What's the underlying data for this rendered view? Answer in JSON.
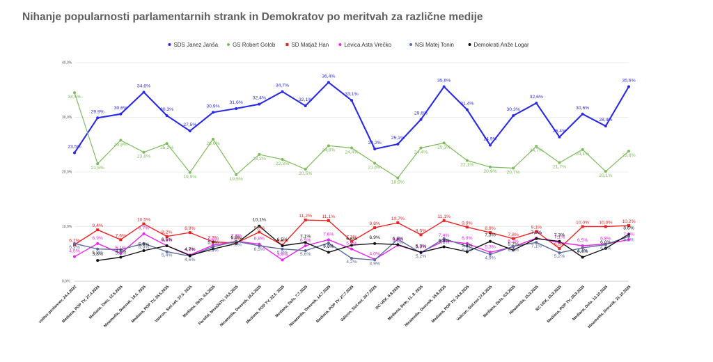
{
  "title": "Nihanje popularnosti parlamentarnih strank in Demokratov po meritvah za različne medije",
  "chart_data": {
    "type": "line",
    "title": "Nihanje popularnosti parlamentarnih strank in Demokratov po meritvah za različne medije",
    "xlabel": "",
    "ylabel": "",
    "ylim": [
      0,
      40
    ],
    "yticks": [
      "0,0%",
      "10,0%",
      "20,0%",
      "30,0%",
      "40,0%"
    ],
    "grid": true,
    "legend_position": "top",
    "categories": [
      "volitve poslancev, 24.4.2022",
      "Mediana, POP TV, 27.4.2025",
      "Mediana, Delo, 12.5.2025",
      "Ninamedia, Dnevnik, 19.5. 2025",
      "Mediana, POP TV, 25.5.2025",
      "Valicon, Siol.net, 27.5. 2025",
      "Mediana, Delo, 9.6.2025",
      "Parsifal, Nova24TV, 16.6.2025",
      "Ninamedia, Dnevnik, 16.6.2025",
      "Mediana, POP TV, 22.6. 2025",
      "Mediana, Delo, 7.7.2025",
      "Ninamedia, Dnevnik, 14.7.2025",
      "Mediana, POP TV, 27.7.2025",
      "Valicon, Siol.net, 30.7.2025",
      "RC UEK, 9.8.2025",
      "Mediana, Delo, 11. 8. 2025",
      "Ninamedia, Dnevnik, 18.8.2025",
      "Mediana, POP TV, 24.8.2025",
      "Valicon, Siol.net 27.8.2025",
      "Mediana, Delo, 9.9.2025",
      "Ninamedia, 15.9.2025",
      "RC UEK, 15.9.2025",
      "Mediana, POP TV, 28.9.2025",
      "Mediana, Delo, 13.10.2025",
      "Ninamedia, Dnevnik, 21.10.2025"
    ],
    "series": [
      {
        "name": "SDS Janez Janša",
        "color": "#2a2ae6",
        "values": [
          23.5,
          29.9,
          30.6,
          34.6,
          30.3,
          27.5,
          30.9,
          31.6,
          32.4,
          34.7,
          32.1,
          36.4,
          33.1,
          24.2,
          25.1,
          29.6,
          35.6,
          31.4,
          24.9,
          30.3,
          32.6,
          26.4,
          30.6,
          28.4,
          35.6
        ],
        "labels": [
          "23,5%",
          "29,9%",
          "30,6%",
          "34,6%",
          "30,3%",
          "27,5%",
          "30,9%",
          "31,6%",
          "32,4%",
          "34,7%",
          "32,1%",
          "36,4%",
          "33,1%",
          "24,2%",
          "25,1%",
          "29,6%",
          "35,6%",
          "31,4%",
          "24,9%",
          "30,3%",
          "32,6%",
          "26,4%",
          "30,6%",
          "28,4%",
          "35,6%"
        ]
      },
      {
        "name": "GS Robert Golob",
        "color": "#7dbb5a",
        "values": [
          34.5,
          21.5,
          25.8,
          23.6,
          25.2,
          19.9,
          26.0,
          19.5,
          23.2,
          22.3,
          20.5,
          24.8,
          24.4,
          21.6,
          18.9,
          24.4,
          25.3,
          22.1,
          20.9,
          20.7,
          24.7,
          21.7,
          24.1,
          20.1,
          23.8
        ],
        "labels": [
          "34,5%",
          "21,5%",
          "25,8%",
          "23,6%",
          "25,2%",
          "19,9%",
          "26,0%",
          "19,5%",
          "23,2%",
          "22,3%",
          "20,5%",
          "24,8%",
          "24,4%",
          "21,6%",
          "18,9%",
          "24,4%",
          "25,3%",
          "22,1%",
          "20,9%",
          "20,7%",
          "24,7%",
          "21,7%",
          "24,1%",
          "20,1%",
          "23,8%"
        ]
      },
      {
        "name": "SD Matjaž Han",
        "color": "#ee2222",
        "values": [
          6.7,
          9.4,
          7.6,
          10.5,
          8.2,
          8.9,
          7.2,
          7.0,
          9.0,
          6.6,
          11.2,
          11.1,
          7.3,
          9.8,
          10.7,
          8.5,
          11.1,
          9.9,
          8.9,
          7.8,
          9.1,
          6.0,
          10.0,
          10.0,
          10.2
        ],
        "labels": [
          "6,7%",
          "9,4%",
          "7,6%",
          "10,5%",
          "8,2%",
          "8,9%",
          "7,2%",
          "7,0%",
          "9,0%",
          "6,6%",
          "11,2%",
          "11,1%",
          "7,3%",
          "9,8%",
          "10,7%",
          "8,5%",
          "11,1%",
          "9,9%",
          "8,9%",
          "7,8%",
          "9,1%",
          "6,0%",
          "10,0%",
          "10,0%",
          "10,2%"
        ]
      },
      {
        "name": "Levica  Asta Vrečko",
        "color": "#ee22ee",
        "values": [
          4.5,
          6.9,
          5.1,
          8.7,
          6.5,
          4.8,
          6.6,
          7.3,
          6.8,
          3.9,
          6.5,
          7.6,
          5.9,
          4.0,
          6.6,
          5.3,
          7.4,
          6.9,
          5.3,
          6.3,
          7.9,
          7.1,
          6.5,
          6.8,
          7.6
        ],
        "labels": [
          "4,5%",
          "6,9%",
          "5,1%",
          "8,7%",
          "6,5%",
          "4,8%",
          "6,6%",
          "7,3%",
          "6,8%",
          "3,9%",
          "6,5%",
          "7,6%",
          "5,9%",
          "4,0%",
          "6,6%",
          "5,3%",
          "7,4%",
          "6,9%",
          "5,3%",
          "6,3%",
          "7,9%",
          "7,1%",
          "6,5%",
          "6,8%",
          "7,6%"
        ]
      },
      {
        "name": "NSi Matej Tonin",
        "color": "#5b6a9e",
        "values": [
          6.9,
          5.9,
          5.8,
          6.9,
          5.4,
          4.6,
          6.3,
          7.3,
          6.5,
          5.9,
          5.6,
          7.0,
          4.2,
          3.9,
          7.7,
          5.2,
          7.8,
          6.4,
          4.9,
          6.4,
          7.1,
          5.2,
          6.1,
          6.7,
          8.2
        ],
        "labels": [
          "6,9%",
          "5,9%",
          "5,8%",
          "6,9%",
          "5,4%",
          "4,6%",
          "6,3%",
          "7,3%",
          "6,5%",
          "5,9%",
          "5,6%",
          "7,0%",
          "4,2%",
          "3,9%",
          "7,7%",
          "5,2%",
          "7,8%",
          "6,4%",
          "4,9%",
          "6,4%",
          "7,1%",
          "5,2%",
          "6,1%",
          "6,7%",
          "8,2%"
        ]
      },
      {
        "name": "Demokrati Anže Logar",
        "color": "#111111",
        "values": [
          null,
          3.8,
          4.4,
          5.6,
          6.5,
          4.7,
          5.9,
          6.9,
          10.1,
          6.5,
          7.1,
          5.3,
          6.6,
          6.9,
          6.7,
          5.3,
          6.3,
          5.4,
          7.3,
          5.7,
          7.8,
          7.3,
          4.4,
          6.0,
          8.6
        ],
        "labels": [
          "",
          "3,8%",
          "4,4%",
          "5,6%",
          "6,5%",
          "4,7%",
          "5,9%",
          "6,9%",
          "10,1%",
          "6,5%",
          "7,1%",
          "5,3%",
          "6,6%",
          "6,9%",
          "6,7%",
          "5,3%",
          "6,3%",
          "5,4%",
          "7,3%",
          "5,7%",
          "7,8%",
          "7,3%",
          "4,4%",
          "6,0%",
          "8,6%"
        ]
      }
    ]
  }
}
